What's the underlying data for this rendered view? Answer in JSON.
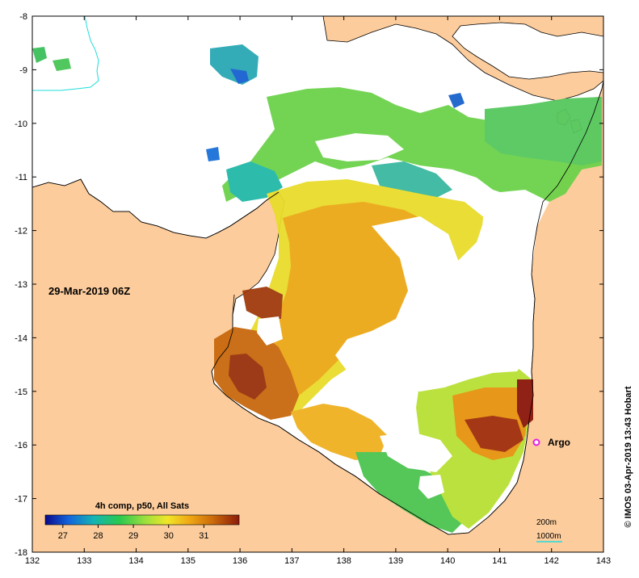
{
  "map": {
    "date_label": "29-Mar-2019 06Z",
    "copyright": "© IMOS 03-Apr-2019 13:43 Hobart",
    "x_ticks": [
      "132",
      "133",
      "134",
      "135",
      "136",
      "137",
      "138",
      "139",
      "140",
      "141",
      "142",
      "143"
    ],
    "y_ticks": [
      "-8",
      "-9",
      "-10",
      "-11",
      "-12",
      "-13",
      "-14",
      "-15",
      "-16",
      "-17",
      "-18"
    ],
    "lon_range": [
      132,
      143
    ],
    "lat_range": [
      -18,
      -8
    ]
  },
  "colorbar": {
    "title": "4h comp, p50, All Sats",
    "ticks": [
      "27",
      "28",
      "29",
      "30",
      "31"
    ],
    "range": [
      26.5,
      32
    ]
  },
  "argo": {
    "label": "Argo",
    "lon": 141.7,
    "lat": -15.95
  },
  "contours": {
    "label_200": "200m",
    "label_1000": "1000m"
  },
  "colors": {
    "land": "#FCCC9C",
    "coast": "#000000",
    "no_data": "#FFFFFF",
    "argo": "#E81CE8",
    "contour_1000": "#1EDCDC"
  }
}
